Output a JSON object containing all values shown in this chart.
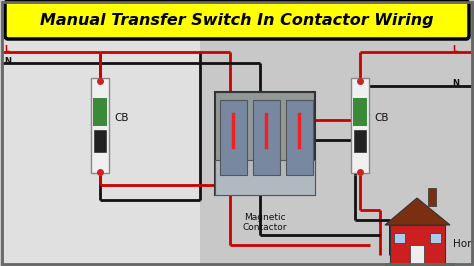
{
  "title": "Manual Transfer Switch In Contactor Wiring",
  "title_color": "#000000",
  "title_bg": "#ffff00",
  "title_border": "#000000",
  "bg_outer": "#c8c8c8",
  "bg_inner": "#e8d8b0",
  "bg_left": "#e0e0e0",
  "wire_red": "#cc0000",
  "wire_black": "#111111",
  "label_L": "L",
  "label_N": "N",
  "label_CB": "CB",
  "label_contactor": "Magnetic\nContactor",
  "label_home": "Home",
  "cb_color": "#f0f0f0",
  "cb_border": "#888888",
  "cb_green": "#3a8a3a",
  "cb_black": "#222222",
  "house_red": "#cc2020",
  "house_brown": "#7a3010",
  "house_white": "#eeeeee",
  "grass_green": "#228B22",
  "house_blue": "#aaccee",
  "wire_lw": 2.0
}
